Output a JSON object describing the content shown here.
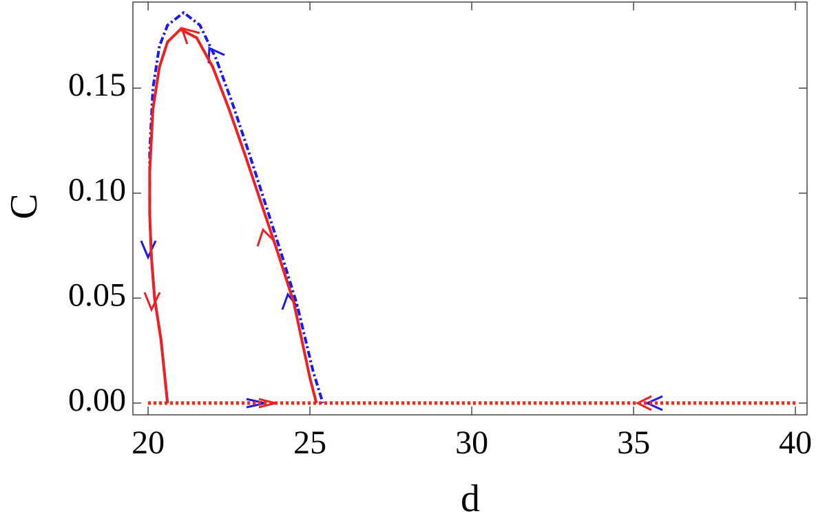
{
  "chart_data": {
    "type": "line",
    "x_label": "d",
    "y_label": "C",
    "xlim": [
      19.53,
      40.36
    ],
    "ylim": [
      -0.0056,
      0.191
    ],
    "xticks": [
      20,
      25,
      30,
      35,
      40
    ],
    "yticks": [
      {
        "value": 0,
        "label": "0.00"
      },
      {
        "value": 0.05,
        "label": "0.05"
      },
      {
        "value": 0.1,
        "label": "0.10"
      },
      {
        "value": 0.15,
        "label": "0.15"
      }
    ],
    "series": [
      {
        "color": "#00ee00",
        "style": "dotted",
        "x": [
          20,
          40
        ],
        "values": [
          0,
          0
        ]
      },
      {
        "color": "#ff2020",
        "style": "dotted",
        "x": [
          20,
          40
        ],
        "values": [
          0,
          0
        ]
      },
      {
        "color": "#1a1aee",
        "style": "dashdot",
        "x": [
          20.6,
          20.4,
          20.2,
          20.1,
          20.05,
          20.05,
          20.15,
          20.35,
          20.6,
          21.1,
          21.6,
          22.1,
          22.6,
          23.1,
          23.6,
          24.1,
          24.6,
          25.1,
          25.4
        ],
        "values": [
          0,
          0.03,
          0.05,
          0.07,
          0.09,
          0.12,
          0.15,
          0.17,
          0.18,
          0.186,
          0.18,
          0.164,
          0.143,
          0.12,
          0.096,
          0.072,
          0.047,
          0.015,
          0
        ]
      },
      {
        "color": "#ee2020",
        "style": "solid",
        "x": [
          20.6,
          20.4,
          20.2,
          20.1,
          20.05,
          20.05,
          20.15,
          20.35,
          20.6,
          21.0,
          21.5,
          22.0,
          22.5,
          23.0,
          23.5,
          24.0,
          24.5,
          25.0,
          25.2
        ],
        "values": [
          0,
          0.03,
          0.05,
          0.07,
          0.09,
          0.11,
          0.14,
          0.16,
          0.172,
          0.178,
          0.174,
          0.16,
          0.14,
          0.118,
          0.095,
          0.072,
          0.048,
          0.012,
          0
        ]
      }
    ]
  }
}
